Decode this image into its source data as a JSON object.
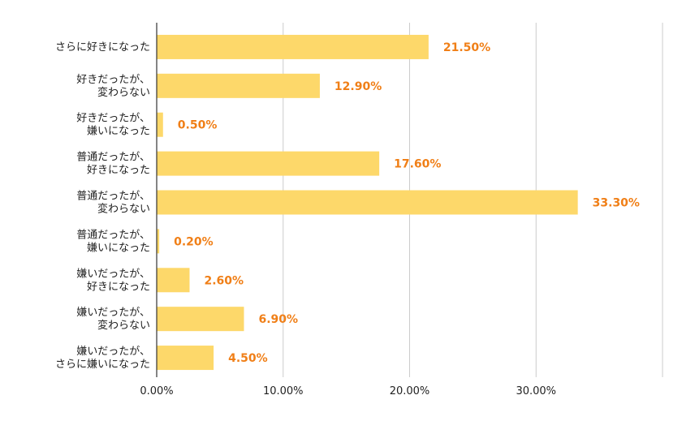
{
  "chart_data": {
    "type": "bar",
    "orientation": "horizontal",
    "categories": [
      [
        "さらに好きになった"
      ],
      [
        "好きだったが、",
        "変わらない"
      ],
      [
        "好きだったが、",
        "嫌いになった"
      ],
      [
        "普通だったが、",
        "好きになった"
      ],
      [
        "普通だったが、",
        "変わらない"
      ],
      [
        "普通だったが、",
        "嫌いになった"
      ],
      [
        "嫌いだったが、",
        "好きになった"
      ],
      [
        "嫌いだったが、",
        "変わらない"
      ],
      [
        "嫌いだったが、",
        "さらに嫌いになった"
      ]
    ],
    "values": [
      21.5,
      12.9,
      0.5,
      17.6,
      33.3,
      0.2,
      2.6,
      6.9,
      4.5
    ],
    "value_labels": [
      "21.50%",
      "12.90%",
      "0.50%",
      "17.60%",
      "33.30%",
      "0.20%",
      "2.60%",
      "6.90%",
      "4.50%"
    ],
    "xlim": [
      0,
      40
    ],
    "x_ticks": [
      0,
      10,
      20,
      30
    ],
    "x_tick_labels": [
      "0.00%",
      "10.00%",
      "20.00%",
      "30.00%"
    ],
    "grid": true,
    "colors": {
      "bar": "#fdd86a",
      "value_label": "#f07f17",
      "grid": "#cccccc",
      "axis": "#333333"
    }
  }
}
